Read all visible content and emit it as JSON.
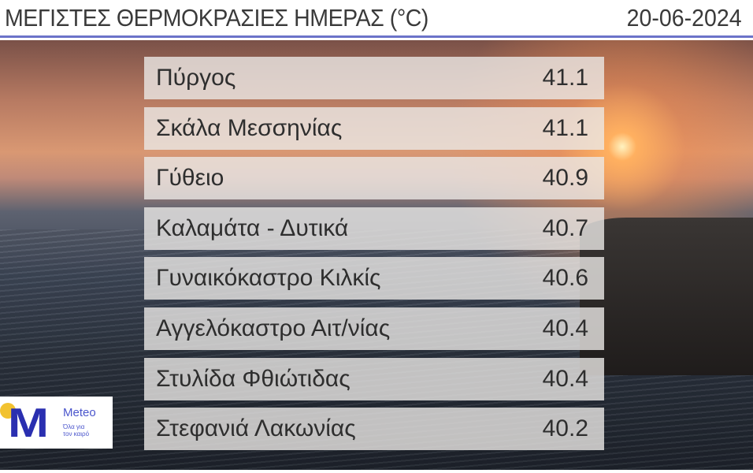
{
  "header": {
    "title": "ΜΕΓΙΣΤΕΣ ΘΕΡΜΟΚΡΑΣΙΕΣ ΗΜΕΡΑΣ (°C)",
    "date": "20-06-2024"
  },
  "rows": [
    {
      "station": "Πύργος",
      "temp": "41.1"
    },
    {
      "station": "Σκάλα Μεσσηνίας",
      "temp": "41.1"
    },
    {
      "station": "Γύθειο",
      "temp": "40.9"
    },
    {
      "station": "Καλαμάτα - Δυτικά",
      "temp": "40.7"
    },
    {
      "station": "Γυναικόκαστρο Κιλκίς",
      "temp": "40.6"
    },
    {
      "station": "Αγγελόκαστρο Αιτ/νίας",
      "temp": "40.4"
    },
    {
      "station": "Στυλίδα Φθιώτιδας",
      "temp": "40.4"
    },
    {
      "station": "Στεφανιά Λακωνίας",
      "temp": "40.2"
    }
  ],
  "logo": {
    "brand": "Meteo",
    "tagline": "Όλα για τον καιρό",
    "colors": {
      "blue": "#2a2fb0",
      "yellow": "#f2c230"
    }
  }
}
